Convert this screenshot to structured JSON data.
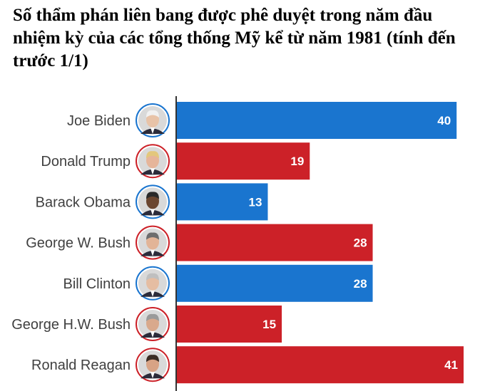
{
  "title": "Số thẩm phán liên bang được phê duyệt trong năm đầu nhiệm kỳ của các tổng thống Mỹ kể từ năm 1981 (tính đến trước 1/1)",
  "colors": {
    "democrat": "#1a75cf",
    "republican": "#cc2128",
    "axis": "#333333",
    "label": "#404040"
  },
  "chart_data": {
    "type": "bar",
    "orientation": "horizontal",
    "title": "Số thẩm phán liên bang được phê duyệt trong năm đầu nhiệm kỳ của các tổng thống Mỹ kể từ năm 1981 (tính đến trước 1/1)",
    "categories": [
      "Joe Biden",
      "Donald Trump",
      "Barack Obama",
      "George W. Bush",
      "Bill Clinton",
      "George H.W. Bush",
      "Ronald Reagan"
    ],
    "values": [
      40,
      19,
      13,
      28,
      28,
      15,
      41
    ],
    "party": [
      "democrat",
      "republican",
      "democrat",
      "republican",
      "democrat",
      "republican",
      "republican"
    ],
    "portrait_icons": [
      "biden-portrait-icon",
      "trump-portrait-icon",
      "obama-portrait-icon",
      "gwbush-portrait-icon",
      "clinton-portrait-icon",
      "ghwbush-portrait-icon",
      "reagan-portrait-icon"
    ],
    "xlim": [
      0,
      41
    ],
    "xlabel": "",
    "ylabel": "",
    "grid": false,
    "data_labels": true
  }
}
